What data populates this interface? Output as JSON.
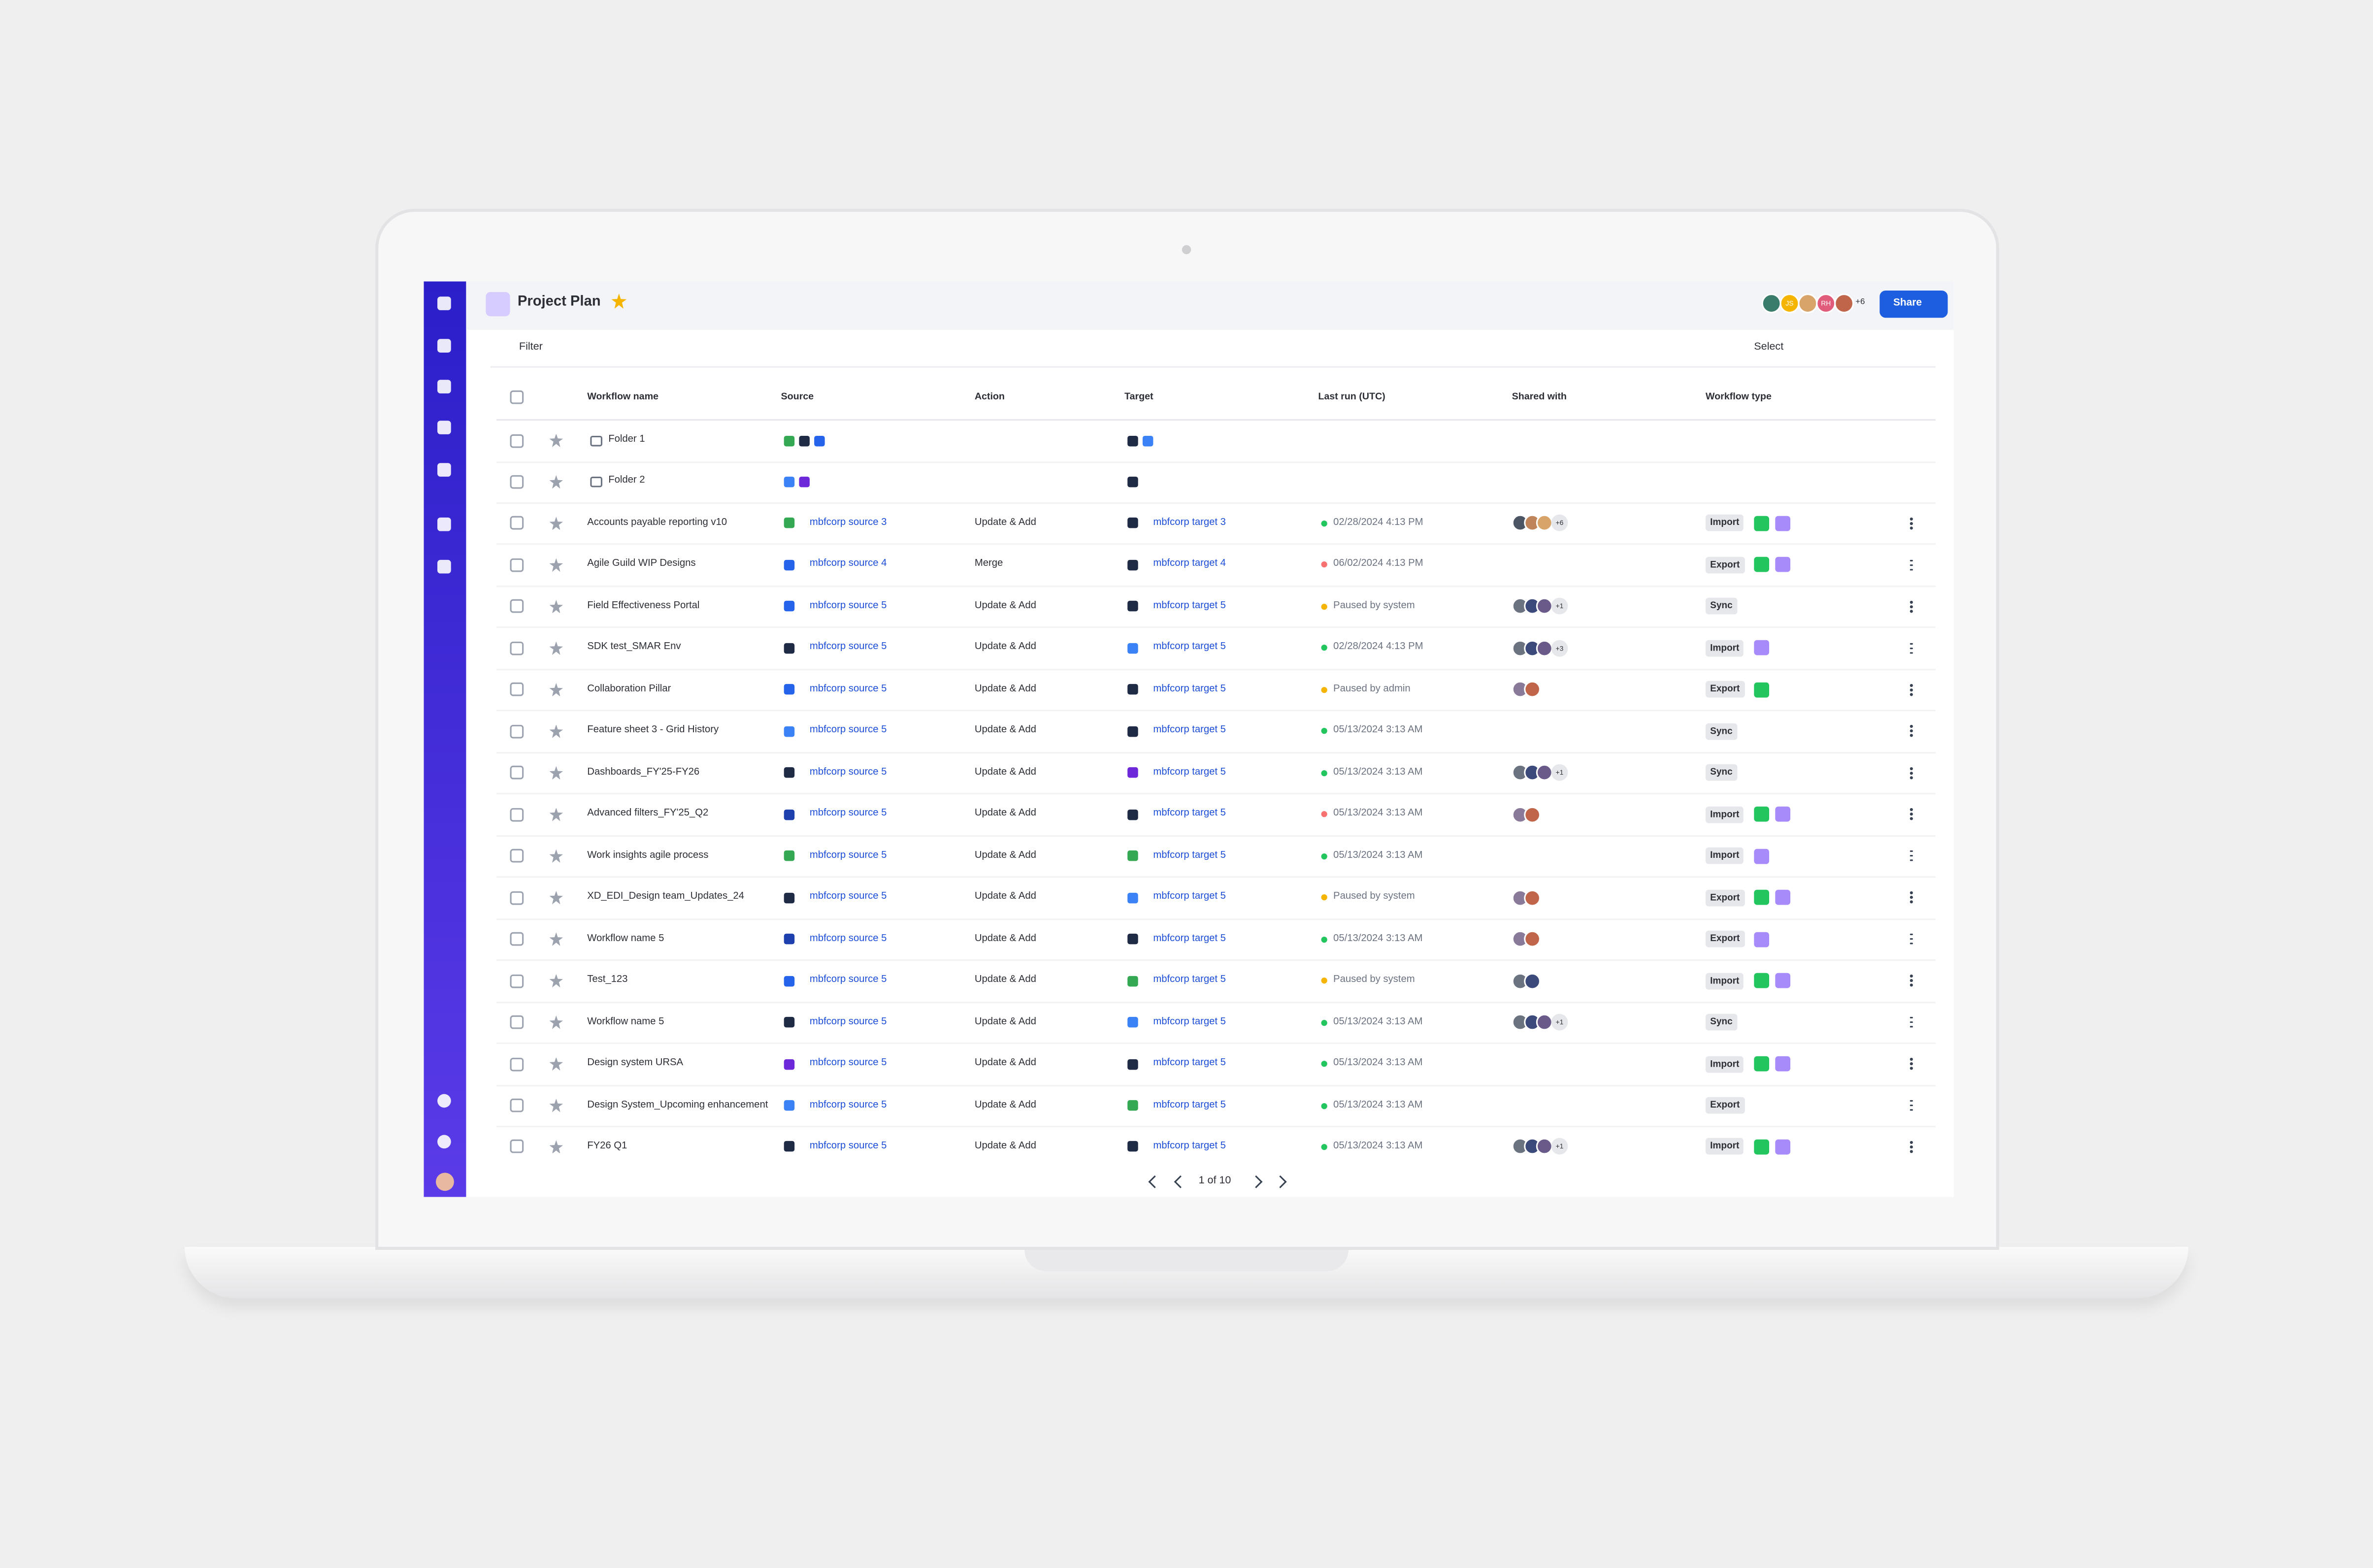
{
  "header": {
    "title": "Project Plan",
    "share": "Share",
    "collaborators": [
      {
        "color": "#3a7c6b"
      },
      {
        "color": "#f5b400",
        "label": "JS"
      },
      {
        "color": "#d9a46a"
      },
      {
        "color": "#e05c7a",
        "label": "RH"
      },
      {
        "color": "#c0654a"
      }
    ],
    "collaborators_more": "+6"
  },
  "toolbar": {
    "filter": "Filter",
    "select": "Select"
  },
  "table": {
    "columns": [
      "Workflow name",
      "Source",
      "Action",
      "Target",
      "Last run (UTC)",
      "Shared with",
      "Workflow type"
    ],
    "rows": [
      {
        "name": "Folder 1",
        "folder": true,
        "source_icons": [
          "#34a853",
          "#1f2a44",
          "#2563eb"
        ],
        "target_icons": [
          "#1f2a44",
          "#3b82f6"
        ]
      },
      {
        "name": "Folder 2",
        "folder": true,
        "source_icons": [
          "#3b82f6",
          "#6d28d9"
        ],
        "target_icons": [
          "#1f2a44"
        ]
      },
      {
        "name": "Accounts payable reporting v10",
        "source_icon": "#34a853",
        "source": "mbfcorp source 3",
        "action": "Update & Add",
        "target_icon": "#1f2a44",
        "target": "mbfcorp target 3",
        "last_run": "02/28/2024 4:13 PM",
        "status_color": "#22c55e",
        "avatars": [
          "#4b5563",
          "#c0845a",
          "#d9a46a"
        ],
        "more": "+6",
        "type": "Import",
        "badges": [
          "#22c55e",
          "#a78bfa"
        ]
      },
      {
        "name": "Agile Guild WIP Designs",
        "source_icon": "#2563eb",
        "source": "mbfcorp source 4",
        "action": "Merge",
        "target_icon": "#1f2a44",
        "target": "mbfcorp target 4",
        "last_run": "06/02/2024 4:13 PM",
        "status_color": "#f87171",
        "avatars": [],
        "type": "Export",
        "badges": [
          "#22c55e",
          "#a78bfa"
        ]
      },
      {
        "name": "Field Effectiveness Portal",
        "source_icon": "#2563eb",
        "source": "mbfcorp source 5",
        "action": "Update & Add",
        "target_icon": "#1f2a44",
        "target": "mbfcorp target 5",
        "last_run": "Paused by system",
        "status_color": "#f5b400",
        "avatars": [
          "#6b7280",
          "#3b4a7a",
          "#6a5a8a"
        ],
        "more": "+1",
        "type": "Sync",
        "badges": []
      },
      {
        "name": "SDK test_SMAR Env",
        "source_icon": "#1f2a44",
        "source": "mbfcorp source 5",
        "action": "Update & Add",
        "target_icon": "#3b82f6",
        "target": "mbfcorp target 5",
        "last_run": "02/28/2024 4:13 PM",
        "status_color": "#22c55e",
        "avatars": [
          "#6b7280",
          "#3b4a7a",
          "#6a5a8a"
        ],
        "more": "+3",
        "type": "Import",
        "badges": [
          "#a78bfa"
        ]
      },
      {
        "name": "Collaboration Pillar",
        "source_icon": "#2563eb",
        "source": "mbfcorp source 5",
        "action": "Update & Add",
        "target_icon": "#1f2a44",
        "target": "mbfcorp target 5",
        "last_run": "Paused by admin",
        "status_color": "#f5b400",
        "avatars": [
          "#8a7a9a",
          "#c0654a"
        ],
        "type": "Export",
        "badges": [
          "#22c55e"
        ]
      },
      {
        "name": "Feature sheet 3 - Grid History",
        "source_icon": "#3b82f6",
        "source": "mbfcorp source 5",
        "action": "Update & Add",
        "target_icon": "#1f2a44",
        "target": "mbfcorp target 5",
        "last_run": "05/13/2024 3:13 AM",
        "status_color": "#22c55e",
        "avatars": [],
        "type": "Sync",
        "badges": []
      },
      {
        "name": "Dashboards_FY'25-FY26",
        "source_icon": "#1f2a44",
        "source": "mbfcorp source 5",
        "action": "Update & Add",
        "target_icon": "#6d28d9",
        "target": "mbfcorp target 5",
        "last_run": "05/13/2024 3:13 AM",
        "status_color": "#22c55e",
        "avatars": [
          "#6b7280",
          "#3b4a7a",
          "#6a5a8a"
        ],
        "more": "+1",
        "type": "Sync",
        "badges": []
      },
      {
        "name": "Advanced filters_FY'25_Q2",
        "source_icon": "#1e40af",
        "source": "mbfcorp source 5",
        "action": "Update & Add",
        "target_icon": "#1f2a44",
        "target": "mbfcorp target 5",
        "last_run": "05/13/2024 3:13 AM",
        "status_color": "#f87171",
        "avatars": [
          "#8a7a9a",
          "#c0654a"
        ],
        "type": "Import",
        "badges": [
          "#22c55e",
          "#a78bfa"
        ]
      },
      {
        "name": "Work insights agile process",
        "source_icon": "#34a853",
        "source": "mbfcorp source 5",
        "action": "Update & Add",
        "target_icon": "#34a853",
        "target": "mbfcorp target 5",
        "last_run": "05/13/2024 3:13 AM",
        "status_color": "#22c55e",
        "avatars": [],
        "type": "Import",
        "badges": [
          "#a78bfa"
        ]
      },
      {
        "name": "XD_EDI_Design team_Updates_24",
        "source_icon": "#1f2a44",
        "source": "mbfcorp source 5",
        "action": "Update & Add",
        "target_icon": "#3b82f6",
        "target": "mbfcorp target 5",
        "last_run": "Paused by system",
        "status_color": "#f5b400",
        "avatars": [
          "#8a7a9a",
          "#c0654a"
        ],
        "type": "Export",
        "badges": [
          "#22c55e",
          "#a78bfa"
        ]
      },
      {
        "name": "Workflow name 5",
        "source_icon": "#1e40af",
        "source": "mbfcorp source 5",
        "action": "Update & Add",
        "target_icon": "#1f2a44",
        "target": "mbfcorp target 5",
        "last_run": "05/13/2024 3:13 AM",
        "status_color": "#22c55e",
        "avatars": [
          "#8a7a9a",
          "#c0654a"
        ],
        "type": "Export",
        "badges": [
          "#a78bfa"
        ]
      },
      {
        "name": "Test_123",
        "source_icon": "#2563eb",
        "source": "mbfcorp source 5",
        "action": "Update & Add",
        "target_icon": "#34a853",
        "target": "mbfcorp target 5",
        "last_run": "Paused by system",
        "status_color": "#f5b400",
        "avatars": [
          "#6b7280",
          "#3b4a7a"
        ],
        "type": "Import",
        "badges": [
          "#22c55e",
          "#a78bfa"
        ]
      },
      {
        "name": "Workflow name 5",
        "source_icon": "#1f2a44",
        "source": "mbfcorp source 5",
        "action": "Update & Add",
        "target_icon": "#3b82f6",
        "target": "mbfcorp target 5",
        "last_run": "05/13/2024 3:13 AM",
        "status_color": "#22c55e",
        "avatars": [
          "#6b7280",
          "#3b4a7a",
          "#6a5a8a"
        ],
        "more": "+1",
        "type": "Sync",
        "badges": []
      },
      {
        "name": "Design system URSA",
        "source_icon": "#6d28d9",
        "source": "mbfcorp source 5",
        "action": "Update & Add",
        "target_icon": "#1f2a44",
        "target": "mbfcorp target 5",
        "last_run": "05/13/2024 3:13 AM",
        "status_color": "#22c55e",
        "avatars": [],
        "type": "Import",
        "badges": [
          "#22c55e",
          "#a78bfa"
        ]
      },
      {
        "name": "Design System_Upcoming enhancement",
        "source_icon": "#3b82f6",
        "source": "mbfcorp source 5",
        "action": "Update & Add",
        "target_icon": "#34a853",
        "target": "mbfcorp target 5",
        "last_run": "05/13/2024 3:13 AM",
        "status_color": "#22c55e",
        "avatars": [],
        "type": "Export",
        "badges": []
      },
      {
        "name": "FY26 Q1",
        "source_icon": "#1f2a44",
        "source": "mbfcorp source 5",
        "action": "Update & Add",
        "target_icon": "#1f2a44",
        "target": "mbfcorp target 5",
        "last_run": "05/13/2024 3:13 AM",
        "status_color": "#22c55e",
        "avatars": [
          "#6b7280",
          "#3b4a7a",
          "#6a5a8a"
        ],
        "more": "+1",
        "type": "Import",
        "badges": [
          "#22c55e",
          "#a78bfa"
        ]
      }
    ]
  },
  "pagination": "1 of 10"
}
